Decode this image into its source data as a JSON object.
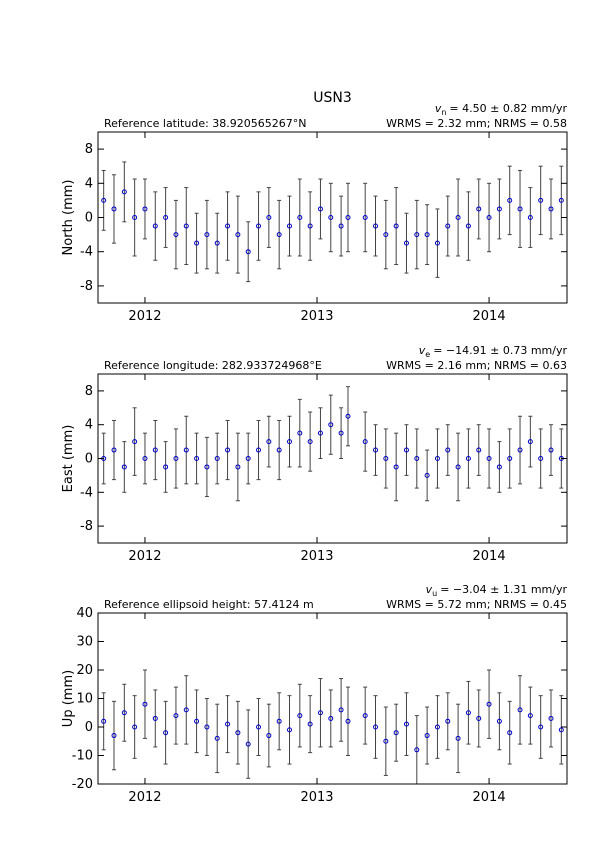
{
  "chart_data": [
    {
      "type": "scatter",
      "title": "USN3",
      "ylabel": "North (mm)",
      "annotation": "Reference latitude: 38.920565267°N",
      "velocity": {
        "symbol": "v",
        "subscript": "n",
        "text": "= 4.50 ± 0.82 mm/yr"
      },
      "stats": "WRMS = 2.32 mm; NRMS = 0.58",
      "xlim": [
        2011.727,
        2014.453
      ],
      "xticks": [
        2012,
        2013,
        2014
      ],
      "ylim": [
        -10,
        10
      ],
      "yticks": [
        -8,
        -4,
        0,
        4,
        8
      ],
      "color": "#0000cc",
      "error_color": "#444444",
      "x": [
        2011.76,
        2011.82,
        2011.88,
        2011.94,
        2012.0,
        2012.06,
        2012.12,
        2012.18,
        2012.24,
        2012.3,
        2012.36,
        2012.42,
        2012.48,
        2012.54,
        2012.6,
        2012.66,
        2012.72,
        2012.78,
        2012.84,
        2012.9,
        2012.96,
        2013.02,
        2013.08,
        2013.14,
        2013.18,
        2013.28,
        2013.34,
        2013.4,
        2013.46,
        2013.52,
        2013.58,
        2013.64,
        2013.7,
        2013.76,
        2013.82,
        2013.88,
        2013.94,
        2014.0,
        2014.06,
        2014.12,
        2014.18,
        2014.24,
        2014.3,
        2014.36,
        2014.42
      ],
      "values": [
        2,
        1,
        3,
        0,
        1,
        -1,
        0,
        -2,
        -1,
        -3,
        -2,
        -3,
        -1,
        -2,
        -4,
        -1,
        0,
        -2,
        -1,
        0,
        -1,
        1,
        0,
        -1,
        0,
        0,
        -1,
        -2,
        -1,
        -3,
        -2,
        -2,
        -3,
        -1,
        0,
        -1,
        1,
        0,
        1,
        2,
        1,
        0,
        2,
        1,
        2
      ],
      "errors": [
        3.5,
        4,
        3.5,
        4.5,
        3.5,
        4,
        3.5,
        4,
        4.5,
        3.5,
        4,
        3.5,
        4,
        4.5,
        3.5,
        4,
        3.5,
        4,
        3.5,
        4.5,
        4,
        3.5,
        4,
        3.5,
        4,
        4,
        3.5,
        4,
        4.5,
        3.5,
        4,
        3.5,
        4,
        3.5,
        4.5,
        4,
        3.5,
        4,
        3.5,
        4,
        4.5,
        3.5,
        4,
        3.5,
        4
      ]
    },
    {
      "type": "scatter",
      "ylabel": "East (mm)",
      "annotation": "Reference longitude: 282.933724968°E",
      "velocity": {
        "symbol": "v",
        "subscript": "e",
        "text": "= −14.91 ± 0.73 mm/yr"
      },
      "stats": "WRMS = 2.16 mm; NRMS = 0.63",
      "xlim": [
        2011.727,
        2014.453
      ],
      "xticks": [
        2012,
        2013,
        2014
      ],
      "ylim": [
        -10,
        10
      ],
      "yticks": [
        -8,
        -4,
        0,
        4,
        8
      ],
      "color": "#0000cc",
      "error_color": "#444444",
      "x": [
        2011.76,
        2011.82,
        2011.88,
        2011.94,
        2012.0,
        2012.06,
        2012.12,
        2012.18,
        2012.24,
        2012.3,
        2012.36,
        2012.42,
        2012.48,
        2012.54,
        2012.6,
        2012.66,
        2012.72,
        2012.78,
        2012.84,
        2012.9,
        2012.96,
        2013.02,
        2013.08,
        2013.14,
        2013.18,
        2013.28,
        2013.34,
        2013.4,
        2013.46,
        2013.52,
        2013.58,
        2013.64,
        2013.7,
        2013.76,
        2013.82,
        2013.88,
        2013.94,
        2014.0,
        2014.06,
        2014.12,
        2014.18,
        2014.24,
        2014.3,
        2014.36,
        2014.42
      ],
      "values": [
        0,
        1,
        -1,
        2,
        0,
        1,
        -1,
        0,
        1,
        0,
        -1,
        0,
        1,
        -1,
        0,
        1,
        2,
        1,
        2,
        3,
        2,
        3,
        4,
        3,
        5,
        2,
        1,
        0,
        -1,
        1,
        0,
        -2,
        0,
        1,
        -1,
        0,
        1,
        0,
        -1,
        0,
        1,
        2,
        0,
        1,
        0
      ],
      "errors": [
        3,
        3.5,
        3,
        4,
        3,
        3.5,
        3,
        3.5,
        4,
        3,
        3.5,
        3,
        3.5,
        4,
        3,
        3.5,
        3,
        3.5,
        3,
        4,
        3.5,
        3,
        3.5,
        3,
        3.5,
        3.5,
        3,
        3.5,
        4,
        3,
        3.5,
        3,
        3.5,
        3,
        4,
        3.5,
        3,
        3.5,
        3,
        3.5,
        4,
        3,
        3.5,
        3,
        3.5
      ]
    },
    {
      "type": "scatter",
      "ylabel": "Up (mm)",
      "annotation": "Reference ellipsoid height: 57.4124 m",
      "velocity": {
        "symbol": "v",
        "subscript": "u",
        "text": "= −3.04 ± 1.31 mm/yr"
      },
      "stats": "WRMS = 5.72 mm; NRMS = 0.45",
      "xlim": [
        2011.727,
        2014.453
      ],
      "xticks": [
        2012,
        2013,
        2014
      ],
      "ylim": [
        -20,
        40
      ],
      "yticks": [
        -20,
        -10,
        0,
        10,
        20,
        30,
        40
      ],
      "color": "#0000cc",
      "error_color": "#444444",
      "x": [
        2011.76,
        2011.82,
        2011.88,
        2011.94,
        2012.0,
        2012.06,
        2012.12,
        2012.18,
        2012.24,
        2012.3,
        2012.36,
        2012.42,
        2012.48,
        2012.54,
        2012.6,
        2012.66,
        2012.72,
        2012.78,
        2012.84,
        2012.9,
        2012.96,
        2013.02,
        2013.08,
        2013.14,
        2013.18,
        2013.28,
        2013.34,
        2013.4,
        2013.46,
        2013.52,
        2013.58,
        2013.64,
        2013.7,
        2013.76,
        2013.82,
        2013.88,
        2013.94,
        2014.0,
        2014.06,
        2014.12,
        2014.18,
        2014.24,
        2014.3,
        2014.36,
        2014.42
      ],
      "values": [
        2,
        -3,
        5,
        0,
        8,
        3,
        -2,
        4,
        6,
        2,
        0,
        -4,
        1,
        -2,
        -6,
        0,
        -3,
        2,
        -1,
        4,
        1,
        5,
        3,
        6,
        2,
        4,
        0,
        -5,
        -2,
        1,
        -8,
        -3,
        0,
        2,
        -4,
        5,
        3,
        8,
        2,
        -2,
        6,
        4,
        0,
        3,
        -1
      ],
      "errors": [
        10,
        12,
        10,
        11,
        12,
        10,
        11,
        10,
        12,
        11,
        10,
        12,
        10,
        11,
        12,
        10,
        11,
        10,
        12,
        11,
        10,
        12,
        10,
        11,
        12,
        10,
        11,
        12,
        10,
        11,
        12,
        10,
        11,
        10,
        12,
        11,
        10,
        12,
        10,
        11,
        12,
        10,
        11,
        10,
        12
      ]
    }
  ]
}
